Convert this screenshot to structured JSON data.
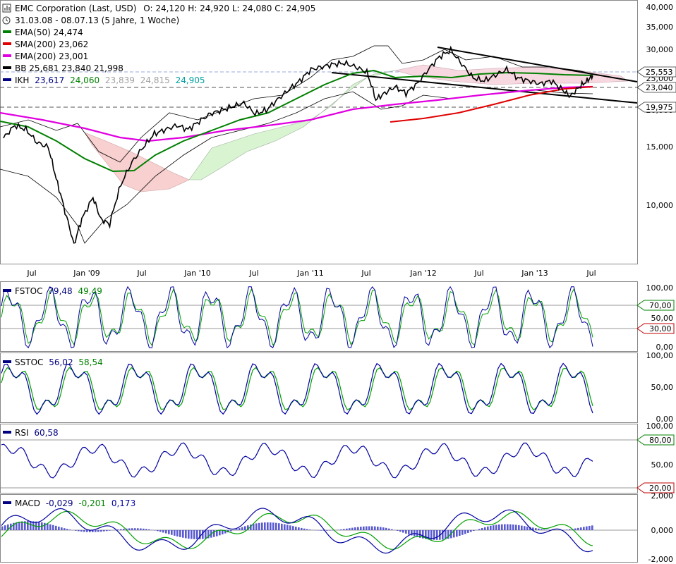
{
  "header": {
    "title": "EMC Corporation (Last, USD)",
    "ohlc": "O: 24,120  H: 24,920  L: 24,080  C: 24,905",
    "period": "31.03.08 - 08.07.13 (5 Jahre, 1 Woche)"
  },
  "legend": [
    {
      "label": "EMA(50)",
      "value": "24,474",
      "color": "#008000"
    },
    {
      "label": "SMA(200)",
      "value": "23,062",
      "color": "#e00000"
    },
    {
      "label": "EMA(200)",
      "value": "23,001",
      "color": "#e000e0"
    },
    {
      "label": "BB",
      "value": "25,681  23,840  21,998",
      "color": "#000000"
    }
  ],
  "ikh": {
    "label": "IKH",
    "values": [
      {
        "v": "23,617",
        "color": "#000080"
      },
      {
        "v": "24,060",
        "color": "#008000"
      },
      {
        "v": "23,839",
        "color": "#a0a0a0"
      },
      {
        "v": "24,815",
        "color": "#a0a0a0"
      },
      {
        "v": "24,905",
        "color": "#00a0a0"
      }
    ],
    "color": "#000080"
  },
  "price_axis": [
    "40,000",
    "35,000",
    "30,000",
    "25,000",
    "20,000",
    "15,000",
    "10,000"
  ],
  "price_markers": [
    {
      "label": "25,553",
      "value": 25.553,
      "style": "flag"
    },
    {
      "label": "23,040",
      "value": 23.04,
      "style": "flag"
    },
    {
      "label": "19,975",
      "value": 19.975,
      "style": "flag"
    }
  ],
  "x_axis": [
    "Jul",
    "Jan '09",
    "Jul",
    "Jan '10",
    "Jul",
    "Jan '11",
    "Jul",
    "Jan '12",
    "Jul",
    "Jan '13",
    "Jul"
  ],
  "indicators": {
    "fstoc": {
      "label": "FSTOC",
      "v1": "79,48",
      "v2": "49,49",
      "axis": [
        "100,00",
        "70,00",
        "50,00",
        "30,00",
        "0,00"
      ]
    },
    "sstoc": {
      "label": "SSTOC",
      "v1": "56,02",
      "v2": "58,54",
      "axis": [
        "100,00",
        "50,00",
        "0,00"
      ]
    },
    "rsi": {
      "label": "RSI",
      "v1": "60,58",
      "axis": [
        "100,00",
        "80,00",
        "50,00",
        "20,00"
      ]
    },
    "macd": {
      "label": "MACD",
      "v1": "-0,029",
      "v2": "-0,201",
      "v3": "0,173",
      "axis": [
        "2,000",
        "0,000",
        "-2,000"
      ]
    }
  },
  "chart_data": {
    "type": "line",
    "title": "EMC Corporation (Last, USD)",
    "x_unit": "weeks",
    "x": [
      "2008-03-31",
      "2013-07-08"
    ],
    "series": [
      {
        "name": "Last",
        "values": [
          [
            2008.25,
            16.0
          ],
          [
            2008.35,
            17.5
          ],
          [
            2008.45,
            17.0
          ],
          [
            2008.55,
            15.5
          ],
          [
            2008.65,
            15.0
          ],
          [
            2008.72,
            12.0
          ],
          [
            2008.8,
            9.5
          ],
          [
            2008.88,
            7.5
          ],
          [
            2008.95,
            9.0
          ],
          [
            2009.05,
            10.5
          ],
          [
            2009.12,
            9.0
          ],
          [
            2009.2,
            8.7
          ],
          [
            2009.3,
            11.5
          ],
          [
            2009.4,
            13.5
          ],
          [
            2009.5,
            15.0
          ],
          [
            2009.6,
            16.5
          ],
          [
            2009.7,
            17.0
          ],
          [
            2009.8,
            17.5
          ],
          [
            2009.9,
            17.0
          ],
          [
            2010.0,
            18.0
          ],
          [
            2010.1,
            19.0
          ],
          [
            2010.2,
            19.5
          ],
          [
            2010.3,
            20.0
          ],
          [
            2010.4,
            20.5
          ],
          [
            2010.5,
            19.0
          ],
          [
            2010.6,
            19.5
          ],
          [
            2010.7,
            21.0
          ],
          [
            2010.8,
            22.5
          ],
          [
            2010.9,
            24.0
          ],
          [
            2011.0,
            26.0
          ],
          [
            2011.1,
            26.5
          ],
          [
            2011.2,
            27.0
          ],
          [
            2011.3,
            27.2
          ],
          [
            2011.4,
            26.5
          ],
          [
            2011.5,
            25.5
          ],
          [
            2011.58,
            21.0
          ],
          [
            2011.66,
            22.0
          ],
          [
            2011.75,
            23.0
          ],
          [
            2011.85,
            22.0
          ],
          [
            2011.95,
            23.5
          ],
          [
            2012.05,
            26.0
          ],
          [
            2012.15,
            28.5
          ],
          [
            2012.25,
            29.8
          ],
          [
            2012.35,
            27.0
          ],
          [
            2012.45,
            24.5
          ],
          [
            2012.55,
            24.0
          ],
          [
            2012.65,
            25.0
          ],
          [
            2012.75,
            26.0
          ],
          [
            2012.85,
            24.5
          ],
          [
            2012.95,
            24.0
          ],
          [
            2013.05,
            23.5
          ],
          [
            2013.15,
            24.0
          ],
          [
            2013.25,
            22.5
          ],
          [
            2013.32,
            21.5
          ],
          [
            2013.4,
            23.0
          ],
          [
            2013.47,
            24.0
          ],
          [
            2013.52,
            24.9
          ]
        ]
      }
    ],
    "ylim": [
      6.5,
      42
    ],
    "log_scale": true
  }
}
